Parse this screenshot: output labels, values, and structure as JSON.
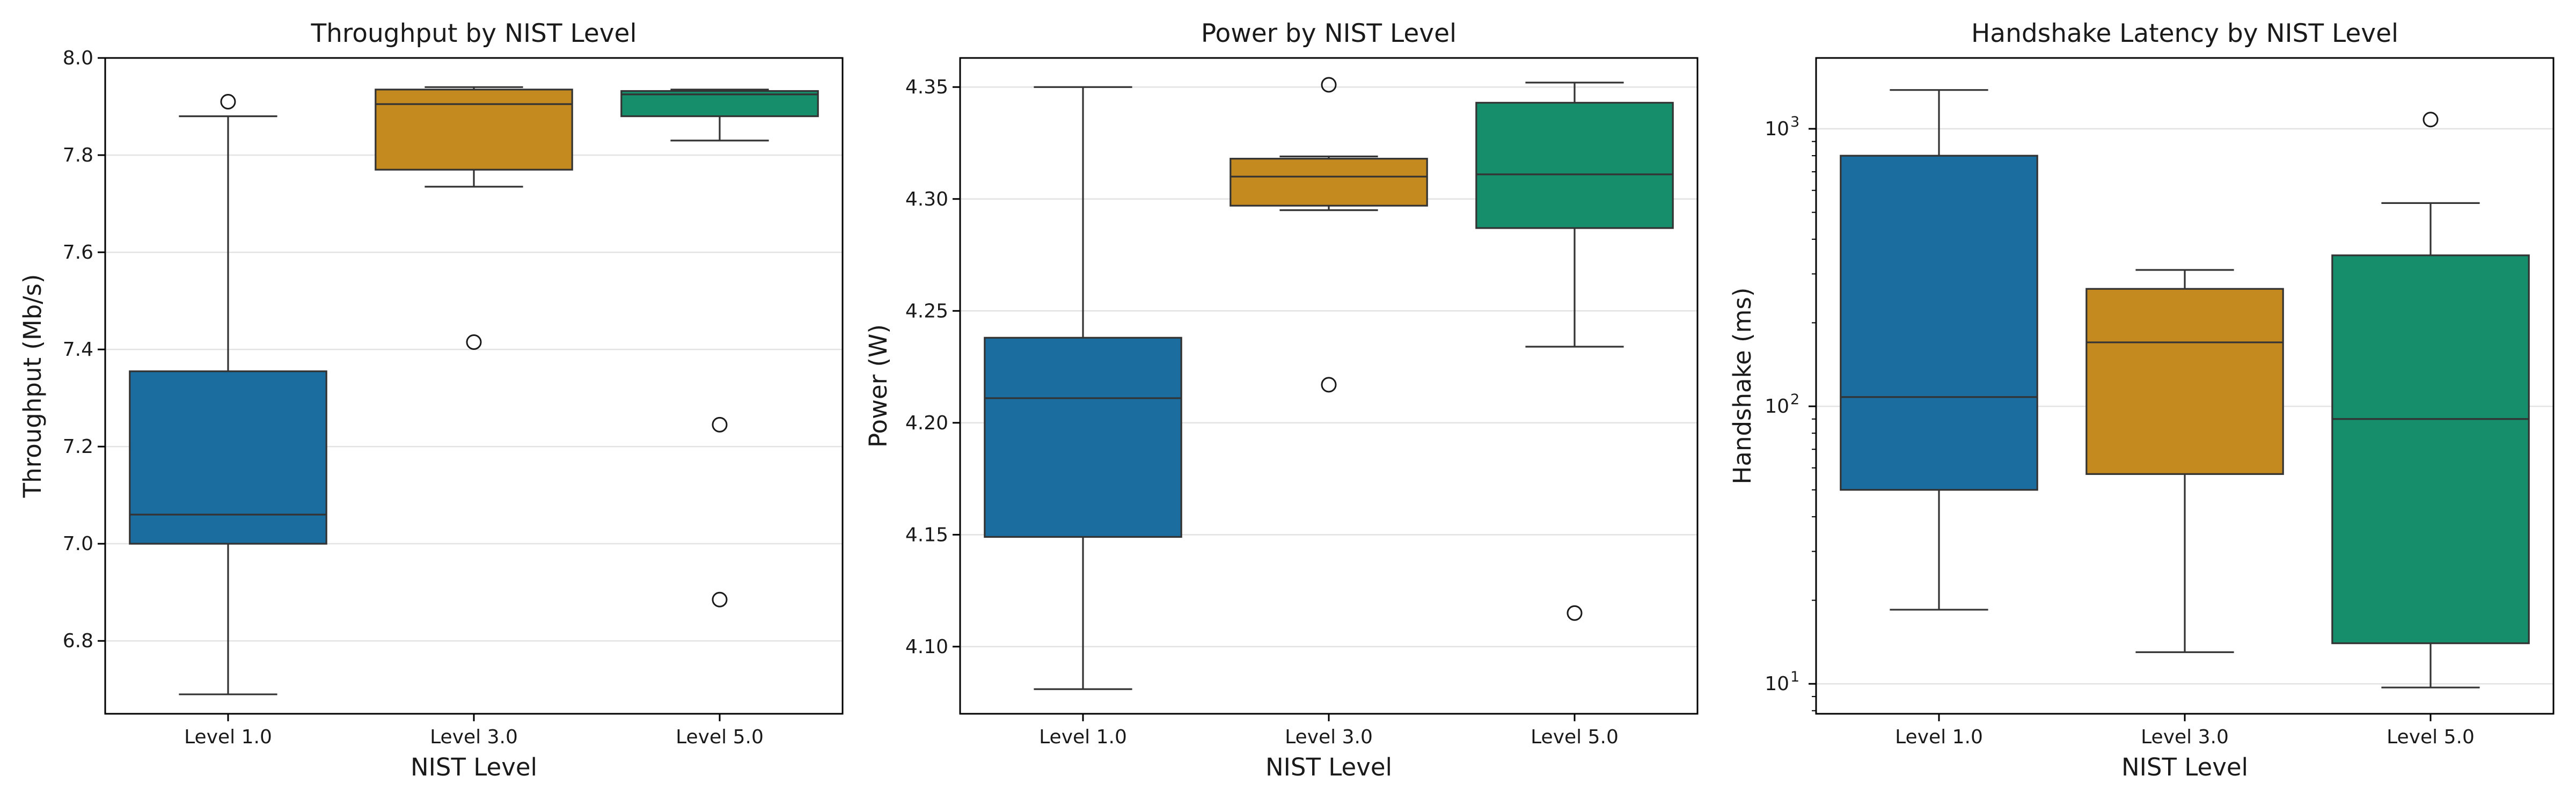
{
  "chart_data": [
    {
      "type": "box",
      "title": "Throughput by NIST Level",
      "xlabel": "NIST Level",
      "ylabel": "Throughput (Mb/s)",
      "categories": [
        "Level 1.0",
        "Level 3.0",
        "Level 5.0"
      ],
      "ylim": [
        6.65,
        8.0
      ],
      "yscale": "linear",
      "yticks": [
        6.8,
        7.0,
        7.2,
        7.4,
        7.6,
        7.8,
        8.0
      ],
      "ytick_labels": [
        "6.8",
        "7.0",
        "7.2",
        "7.4",
        "7.6",
        "7.8",
        "8.0"
      ],
      "grid": "horizontal",
      "boxes": [
        {
          "category": "Level 1.0",
          "whisker_low": 6.69,
          "q1": 7.0,
          "median": 7.06,
          "q3": 7.355,
          "whisker_high": 7.88,
          "outliers": [
            7.91
          ]
        },
        {
          "category": "Level 3.0",
          "whisker_low": 7.735,
          "q1": 7.77,
          "median": 7.905,
          "q3": 7.935,
          "whisker_high": 7.94,
          "outliers": [
            7.415
          ]
        },
        {
          "category": "Level 5.0",
          "whisker_low": 7.83,
          "q1": 7.88,
          "median": 7.925,
          "q3": 7.932,
          "whisker_high": 7.935,
          "outliers": [
            7.245,
            6.885
          ]
        }
      ]
    },
    {
      "type": "box",
      "title": "Power by NIST Level",
      "xlabel": "NIST Level",
      "ylabel": "Power (W)",
      "categories": [
        "Level 1.0",
        "Level 3.0",
        "Level 5.0"
      ],
      "ylim": [
        4.07,
        4.363
      ],
      "yscale": "linear",
      "yticks": [
        4.1,
        4.15,
        4.2,
        4.25,
        4.3,
        4.35
      ],
      "ytick_labels": [
        "4.10",
        "4.15",
        "4.20",
        "4.25",
        "4.30",
        "4.35"
      ],
      "grid": "horizontal",
      "boxes": [
        {
          "category": "Level 1.0",
          "whisker_low": 4.081,
          "q1": 4.149,
          "median": 4.211,
          "q3": 4.238,
          "whisker_high": 4.35,
          "outliers": []
        },
        {
          "category": "Level 3.0",
          "whisker_low": 4.295,
          "q1": 4.297,
          "median": 4.31,
          "q3": 4.318,
          "whisker_high": 4.319,
          "outliers": [
            4.351,
            4.217
          ]
        },
        {
          "category": "Level 5.0",
          "whisker_low": 4.234,
          "q1": 4.287,
          "median": 4.311,
          "q3": 4.343,
          "whisker_high": 4.352,
          "outliers": [
            4.115
          ]
        }
      ]
    },
    {
      "type": "box",
      "title": "Handshake Latency by NIST Level",
      "xlabel": "NIST Level",
      "ylabel": "Handshake (ms)",
      "categories": [
        "Level 1.0",
        "Level 3.0",
        "Level 5.0"
      ],
      "ylim": [
        7.8,
        1800
      ],
      "yscale": "log",
      "yticks": [
        10,
        100,
        1000
      ],
      "ytick_labels": [
        "10",
        "10",
        "10"
      ],
      "ytick_exponents": [
        "1",
        "2",
        "3"
      ],
      "grid": "horizontal",
      "boxes": [
        {
          "category": "Level 1.0",
          "whisker_low": 18.5,
          "q1": 50,
          "median": 108,
          "q3": 800,
          "whisker_high": 1380,
          "outliers": []
        },
        {
          "category": "Level 3.0",
          "whisker_low": 13,
          "q1": 57,
          "median": 170,
          "q3": 265,
          "whisker_high": 310,
          "outliers": []
        },
        {
          "category": "Level 5.0",
          "whisker_low": 9.7,
          "q1": 14,
          "median": 90,
          "q3": 350,
          "whisker_high": 540,
          "outliers": [
            1080
          ]
        }
      ]
    }
  ],
  "colors": {
    "level_1": "#1a6d9e",
    "level_3": "#c4891f",
    "level_5": "#178e6b",
    "grid": "#e3e3e3",
    "axis": "#000000"
  }
}
